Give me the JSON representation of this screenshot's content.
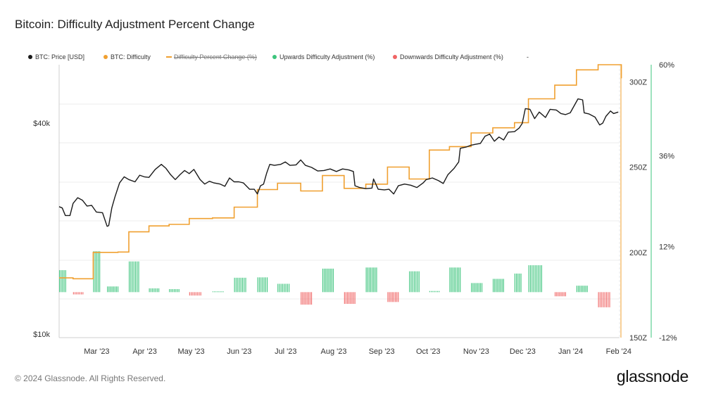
{
  "title": "Bitcoin: Difficulty Adjustment Percent Change",
  "legend": [
    {
      "label": "BTC: Price [USD]",
      "color": "#1a1a1a",
      "style": "dot"
    },
    {
      "label": "BTC: Difficulty",
      "color": "#f0a030",
      "style": "dot"
    },
    {
      "label": "Difficulty Percent Change (%)",
      "color": "#f0a030",
      "style": "line-strikethrough"
    },
    {
      "label": "Upwards Difficulty Adjustment (%)",
      "color": "#3cc47c",
      "style": "dot"
    },
    {
      "label": "Downwards Difficulty Adjustment (%)",
      "color": "#f06464",
      "style": "dot"
    },
    {
      "label": "-",
      "color": "#999999",
      "style": "text"
    }
  ],
  "footer": "© 2024 Glassnode. All Rights Reserved.",
  "brand": "glassnode",
  "chart_data": {
    "type": "line",
    "x_tick_labels": [
      "Mar '23",
      "Apr '23",
      "May '23",
      "Jun '23",
      "Jul '23",
      "Aug '23",
      "Sep '23",
      "Oct '23",
      "Nov '23",
      "Dec '23",
      "Jan '24",
      "Feb '24"
    ],
    "x_range": [
      "2023-02-07",
      "2024-02-05"
    ],
    "price_axis": {
      "ticks": [
        "$40k",
        "$10k"
      ],
      "tick_values": [
        40000,
        10000
      ],
      "scale": "log",
      "color": "#1a1a1a"
    },
    "difficulty_axis": {
      "ticks": [
        "300Z",
        "250Z",
        "200Z",
        "150Z"
      ],
      "tick_values": [
        300,
        250,
        200,
        150
      ],
      "range": [
        150,
        310
      ],
      "color": "#f0a030"
    },
    "percent_axis": {
      "ticks": [
        "60%",
        "36%",
        "12%",
        "-12%"
      ],
      "tick_values": [
        60,
        36,
        12,
        -12
      ],
      "range": [
        -12,
        60
      ],
      "color": "#3cc47c"
    },
    "grid": true,
    "series": [
      {
        "name": "BTC: Price [USD]",
        "color": "#1a1a1a",
        "points": [
          [
            "2023-02-07",
            23100
          ],
          [
            "2023-02-09",
            22900
          ],
          [
            "2023-02-11",
            21800
          ],
          [
            "2023-02-14",
            21800
          ],
          [
            "2023-02-16",
            23600
          ],
          [
            "2023-02-19",
            24500
          ],
          [
            "2023-02-22",
            24100
          ],
          [
            "2023-02-25",
            23200
          ],
          [
            "2023-02-28",
            23300
          ],
          [
            "2023-03-03",
            22300
          ],
          [
            "2023-03-07",
            22200
          ],
          [
            "2023-03-10",
            20300
          ],
          [
            "2023-03-11",
            20400
          ],
          [
            "2023-03-13",
            22900
          ],
          [
            "2023-03-15",
            24600
          ],
          [
            "2023-03-18",
            27000
          ],
          [
            "2023-03-21",
            28100
          ],
          [
            "2023-03-24",
            27600
          ],
          [
            "2023-03-28",
            27200
          ],
          [
            "2023-03-31",
            28400
          ],
          [
            "2023-04-03",
            28100
          ],
          [
            "2023-04-06",
            28000
          ],
          [
            "2023-04-10",
            29500
          ],
          [
            "2023-04-14",
            30500
          ],
          [
            "2023-04-17",
            29700
          ],
          [
            "2023-04-20",
            28500
          ],
          [
            "2023-04-23",
            27600
          ],
          [
            "2023-04-26",
            28500
          ],
          [
            "2023-04-29",
            29300
          ],
          [
            "2023-05-02",
            28700
          ],
          [
            "2023-05-05",
            29500
          ],
          [
            "2023-05-09",
            27600
          ],
          [
            "2023-05-12",
            26800
          ],
          [
            "2023-05-15",
            27300
          ],
          [
            "2023-05-18",
            27000
          ],
          [
            "2023-05-22",
            26800
          ],
          [
            "2023-05-25",
            26400
          ],
          [
            "2023-05-28",
            27900
          ],
          [
            "2023-05-31",
            27200
          ],
          [
            "2023-06-03",
            27200
          ],
          [
            "2023-06-06",
            27000
          ],
          [
            "2023-06-10",
            25900
          ],
          [
            "2023-06-13",
            25900
          ],
          [
            "2023-06-15",
            25100
          ],
          [
            "2023-06-17",
            26500
          ],
          [
            "2023-06-19",
            26800
          ],
          [
            "2023-06-21",
            28800
          ],
          [
            "2023-06-23",
            30500
          ],
          [
            "2023-06-26",
            30300
          ],
          [
            "2023-06-30",
            30500
          ],
          [
            "2023-07-03",
            31000
          ],
          [
            "2023-07-06",
            30300
          ],
          [
            "2023-07-10",
            30400
          ],
          [
            "2023-07-13",
            31400
          ],
          [
            "2023-07-16",
            30300
          ],
          [
            "2023-07-20",
            29900
          ],
          [
            "2023-07-24",
            29200
          ],
          [
            "2023-07-28",
            29300
          ],
          [
            "2023-08-01",
            29600
          ],
          [
            "2023-08-05",
            29100
          ],
          [
            "2023-08-09",
            29600
          ],
          [
            "2023-08-13",
            29400
          ],
          [
            "2023-08-16",
            29100
          ],
          [
            "2023-08-17",
            26500
          ],
          [
            "2023-08-20",
            26200
          ],
          [
            "2023-08-24",
            26000
          ],
          [
            "2023-08-28",
            26100
          ],
          [
            "2023-08-29",
            27700
          ],
          [
            "2023-09-01",
            25900
          ],
          [
            "2023-09-05",
            25800
          ],
          [
            "2023-09-08",
            25900
          ],
          [
            "2023-09-11",
            25100
          ],
          [
            "2023-09-14",
            26500
          ],
          [
            "2023-09-18",
            26800
          ],
          [
            "2023-09-22",
            26600
          ],
          [
            "2023-09-26",
            26200
          ],
          [
            "2023-09-30",
            27000
          ],
          [
            "2023-10-02",
            27600
          ],
          [
            "2023-10-06",
            27900
          ],
          [
            "2023-10-10",
            27400
          ],
          [
            "2023-10-13",
            26900
          ],
          [
            "2023-10-16",
            28500
          ],
          [
            "2023-10-20",
            29700
          ],
          [
            "2023-10-23",
            31000
          ],
          [
            "2023-10-24",
            33900
          ],
          [
            "2023-10-28",
            34200
          ],
          [
            "2023-10-31",
            34600
          ],
          [
            "2023-11-03",
            34800
          ],
          [
            "2023-11-06",
            35000
          ],
          [
            "2023-11-09",
            36700
          ],
          [
            "2023-11-12",
            37200
          ],
          [
            "2023-11-15",
            35500
          ],
          [
            "2023-11-18",
            36500
          ],
          [
            "2023-11-21",
            35800
          ],
          [
            "2023-11-24",
            37700
          ],
          [
            "2023-11-28",
            37800
          ],
          [
            "2023-12-01",
            38700
          ],
          [
            "2023-12-03",
            39900
          ],
          [
            "2023-12-05",
            44000
          ],
          [
            "2023-12-08",
            43800
          ],
          [
            "2023-12-11",
            41200
          ],
          [
            "2023-12-14",
            43000
          ],
          [
            "2023-12-18",
            41500
          ],
          [
            "2023-12-21",
            43800
          ],
          [
            "2023-12-25",
            43600
          ],
          [
            "2023-12-28",
            42600
          ],
          [
            "2023-12-31",
            42300
          ],
          [
            "2024-01-03",
            42800
          ],
          [
            "2024-01-08",
            46900
          ],
          [
            "2024-01-11",
            46600
          ],
          [
            "2024-01-12",
            42800
          ],
          [
            "2024-01-15",
            42500
          ],
          [
            "2024-01-19",
            41600
          ],
          [
            "2024-01-22",
            39500
          ],
          [
            "2024-01-24",
            40000
          ],
          [
            "2024-01-26",
            41800
          ],
          [
            "2024-01-29",
            43300
          ],
          [
            "2024-01-31",
            42600
          ],
          [
            "2024-02-03",
            43000
          ]
        ]
      },
      {
        "name": "BTC: Difficulty",
        "color": "#f0a030",
        "points": [
          [
            "2023-02-07",
            185
          ],
          [
            "2023-02-16",
            184.5
          ],
          [
            "2023-03-01",
            200
          ],
          [
            "2023-03-10",
            200
          ],
          [
            "2023-03-17",
            200.2
          ],
          [
            "2023-03-24",
            212
          ],
          [
            "2023-04-06",
            215.5
          ],
          [
            "2023-04-19",
            216.4
          ],
          [
            "2023-05-02",
            219.8
          ],
          [
            "2023-05-17",
            220.2
          ],
          [
            "2023-05-31",
            226.5
          ],
          [
            "2023-06-15",
            236.8
          ],
          [
            "2023-06-28",
            240.5
          ],
          [
            "2023-07-13",
            236
          ],
          [
            "2023-07-27",
            245
          ],
          [
            "2023-08-10",
            237.5
          ],
          [
            "2023-08-24",
            240
          ],
          [
            "2023-09-07",
            250
          ],
          [
            "2023-09-21",
            243
          ],
          [
            "2023-10-04",
            260
          ],
          [
            "2023-10-17",
            262
          ],
          [
            "2023-10-31",
            270
          ],
          [
            "2023-11-14",
            273
          ],
          [
            "2023-11-28",
            276
          ],
          [
            "2023-12-07",
            290
          ],
          [
            "2023-12-24",
            298
          ],
          [
            "2024-01-07",
            307
          ],
          [
            "2024-01-21",
            310
          ],
          [
            "2024-02-05",
            302
          ]
        ]
      },
      {
        "name": "Difficulty Percent Change (%)",
        "color": "#3cc47c",
        "negative_color": "#f06464",
        "points": [
          [
            "2023-02-07",
            5.8
          ],
          [
            "2023-02-16",
            -0.6
          ],
          [
            "2023-03-01",
            10.8
          ],
          [
            "2023-03-10",
            1.5
          ],
          [
            "2023-03-24",
            8.1
          ],
          [
            "2023-04-06",
            1.0
          ],
          [
            "2023-04-19",
            0.8
          ],
          [
            "2023-05-02",
            -0.9
          ],
          [
            "2023-05-17",
            0.2
          ],
          [
            "2023-05-31",
            3.8
          ],
          [
            "2023-06-15",
            3.9
          ],
          [
            "2023-06-28",
            2.2
          ],
          [
            "2023-07-13",
            -3.3
          ],
          [
            "2023-07-27",
            6.2
          ],
          [
            "2023-08-10",
            -3.1
          ],
          [
            "2023-08-24",
            6.5
          ],
          [
            "2023-09-07",
            -2.6
          ],
          [
            "2023-09-21",
            5.5
          ],
          [
            "2023-10-04",
            0.3
          ],
          [
            "2023-10-17",
            6.5
          ],
          [
            "2023-10-31",
            2.4
          ],
          [
            "2023-11-14",
            3.5
          ],
          [
            "2023-11-28",
            4.9
          ],
          [
            "2023-12-07",
            7.1
          ],
          [
            "2023-12-24",
            -1.1
          ],
          [
            "2024-01-07",
            1.7
          ],
          [
            "2024-01-21",
            -4.0
          ]
        ]
      }
    ]
  }
}
